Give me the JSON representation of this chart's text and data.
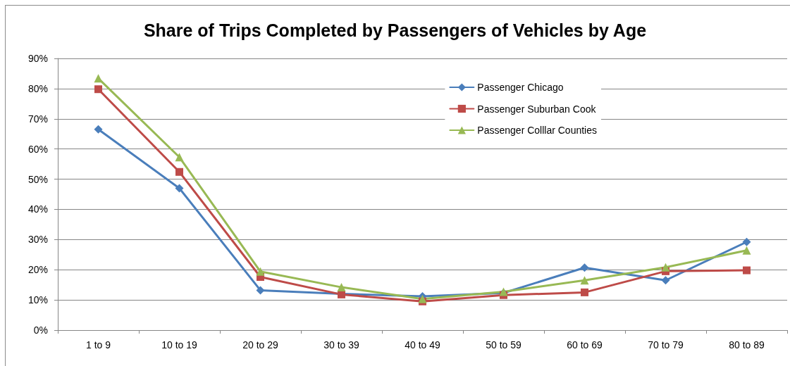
{
  "chart_data": {
    "type": "line",
    "title": "Share of Trips Completed by Passengers of Vehicles by Age",
    "categories": [
      "1 to 9",
      "10 to 19",
      "20 to 29",
      "30 to 39",
      "40 to 49",
      "50 to 59",
      "60 to 69",
      "70 to 79",
      "80 to 89"
    ],
    "series": [
      {
        "name": "Passenger Chicago",
        "color": "#4a7ebb",
        "marker": "diamond",
        "values": [
          66.5,
          47,
          13.2,
          12,
          11.2,
          12.3,
          20.7,
          16.5,
          29.2
        ]
      },
      {
        "name": "Passenger Suburban Cook",
        "color": "#be4b48",
        "marker": "square",
        "values": [
          79.8,
          52.4,
          17.6,
          11.8,
          9.5,
          11.6,
          12.5,
          19.5,
          19.8
        ]
      },
      {
        "name": "Passenger Colllar Counties",
        "color": "#98b954",
        "marker": "triangle",
        "values": [
          83.4,
          57.3,
          19.4,
          14.2,
          10.3,
          12.7,
          16.5,
          20.8,
          26.4
        ]
      }
    ],
    "ylim": [
      0,
      90
    ],
    "yticks": [
      {
        "value": 0,
        "label": "0%"
      },
      {
        "value": 10,
        "label": "10%"
      },
      {
        "value": 20,
        "label": "20%"
      },
      {
        "value": 30,
        "label": "30%"
      },
      {
        "value": 40,
        "label": "40%"
      },
      {
        "value": 50,
        "label": "50%"
      },
      {
        "value": 60,
        "label": "60%"
      },
      {
        "value": 70,
        "label": "70%"
      },
      {
        "value": 80,
        "label": "80%"
      },
      {
        "value": 90,
        "label": "90%"
      }
    ],
    "grid": "y",
    "legend": "top right",
    "line_style": "solid"
  }
}
